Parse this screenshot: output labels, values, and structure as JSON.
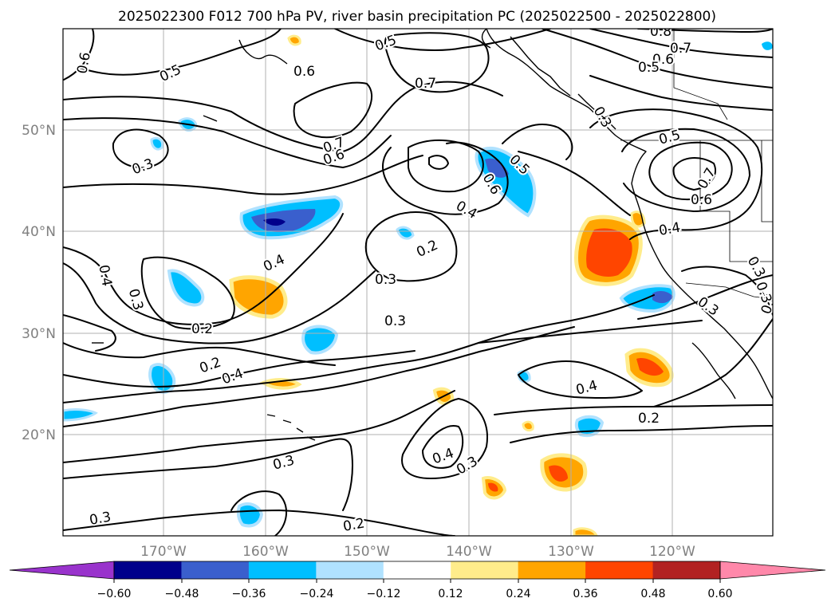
{
  "title": "2025022300 F012 700 hPa PV, river basin precipitation PC (2025022500 - 2025022800)",
  "lon_labels": [
    "170°W",
    "160°W",
    "150°W",
    "140°W",
    "130°W",
    "120°W"
  ],
  "lat_labels": [
    "50°N",
    "40°N",
    "30°N",
    "20°N"
  ],
  "colorbar": {
    "ticks": [
      "−0.60",
      "−0.48",
      "−0.36",
      "−0.24",
      "−0.12",
      "0.12",
      "0.24",
      "0.36",
      "0.48",
      "0.60"
    ],
    "colors": [
      "#9933cc",
      "#00008b",
      "#3a5fcd",
      "#00bfff",
      "#b0e2ff",
      "#ffffff",
      "#ffec8b",
      "#ffa500",
      "#ff4500",
      "#b22222",
      "#ff88aa"
    ]
  },
  "contour_labels": [
    "0.6",
    "0.5",
    "0.5",
    "0.6",
    "0.7",
    "0.8",
    "0.7",
    "0.6",
    "0.5",
    "0.3",
    "0.7",
    "0.6",
    "0.5",
    "0.3",
    "0.5",
    "0.6",
    "0.7",
    "0.6",
    "0.4",
    "0.4",
    "0.2",
    "0.3",
    "0.4",
    "0.3",
    "0.2",
    "0.4",
    "0.3",
    "0.3",
    "0.3",
    "0.2",
    "0.4",
    "0.4",
    "0.4",
    "0.2",
    "0.4",
    "0.3",
    "0.3",
    "0.3",
    "0.2",
    "0.3"
  ],
  "colors": {
    "contour": "#000000",
    "grid": "#b0b0b0",
    "axis_label": "#808080"
  }
}
